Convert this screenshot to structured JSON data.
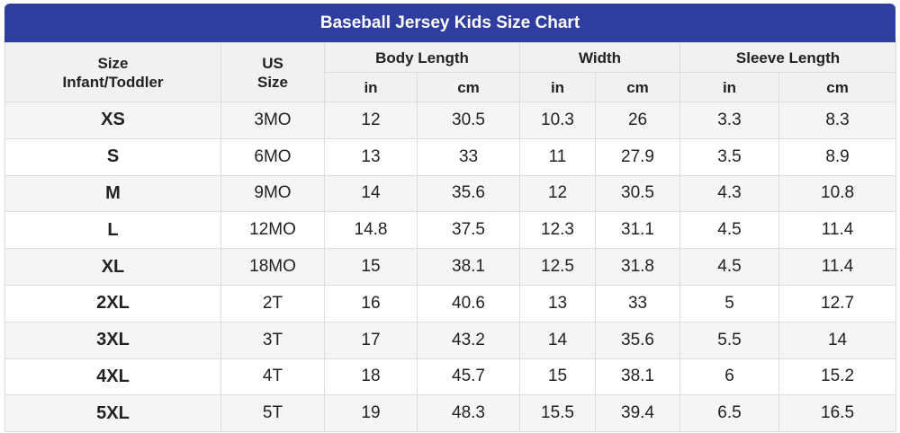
{
  "title": "Baseball Jersey Kids Size Chart",
  "table": {
    "headers": [
      "Size\nInfant/Toddler",
      "US\nSize",
      "Body Length",
      "Width",
      "Sleeve Length"
    ],
    "units": [
      "in",
      "cm",
      "in",
      "cm",
      "in",
      "cm"
    ],
    "rows": [
      [
        "XS",
        "3MO",
        12,
        30.5,
        10.3,
        26,
        3.3,
        8.3
      ],
      [
        "S",
        "6MO",
        13,
        33,
        11,
        27.9,
        3.5,
        8.9
      ],
      [
        "M",
        "9MO",
        14,
        35.6,
        12,
        30.5,
        4.3,
        10.8
      ],
      [
        "L",
        "12MO",
        14.8,
        37.5,
        12.3,
        31.1,
        4.5,
        11.4
      ],
      [
        "XL",
        "18MO",
        15,
        38.1,
        12.5,
        31.8,
        4.5,
        11.4
      ],
      [
        "2XL",
        "2T",
        16,
        40.6,
        13,
        33,
        5,
        12.7
      ],
      [
        "3XL",
        "3T",
        17,
        43.2,
        14,
        35.6,
        5.5,
        14
      ],
      [
        "4XL",
        "4T",
        18,
        45.7,
        15,
        38.1,
        6,
        15.2
      ],
      [
        "5XL",
        "5T",
        19,
        48.3,
        15.5,
        39.4,
        6.5,
        16.5
      ]
    ]
  }
}
